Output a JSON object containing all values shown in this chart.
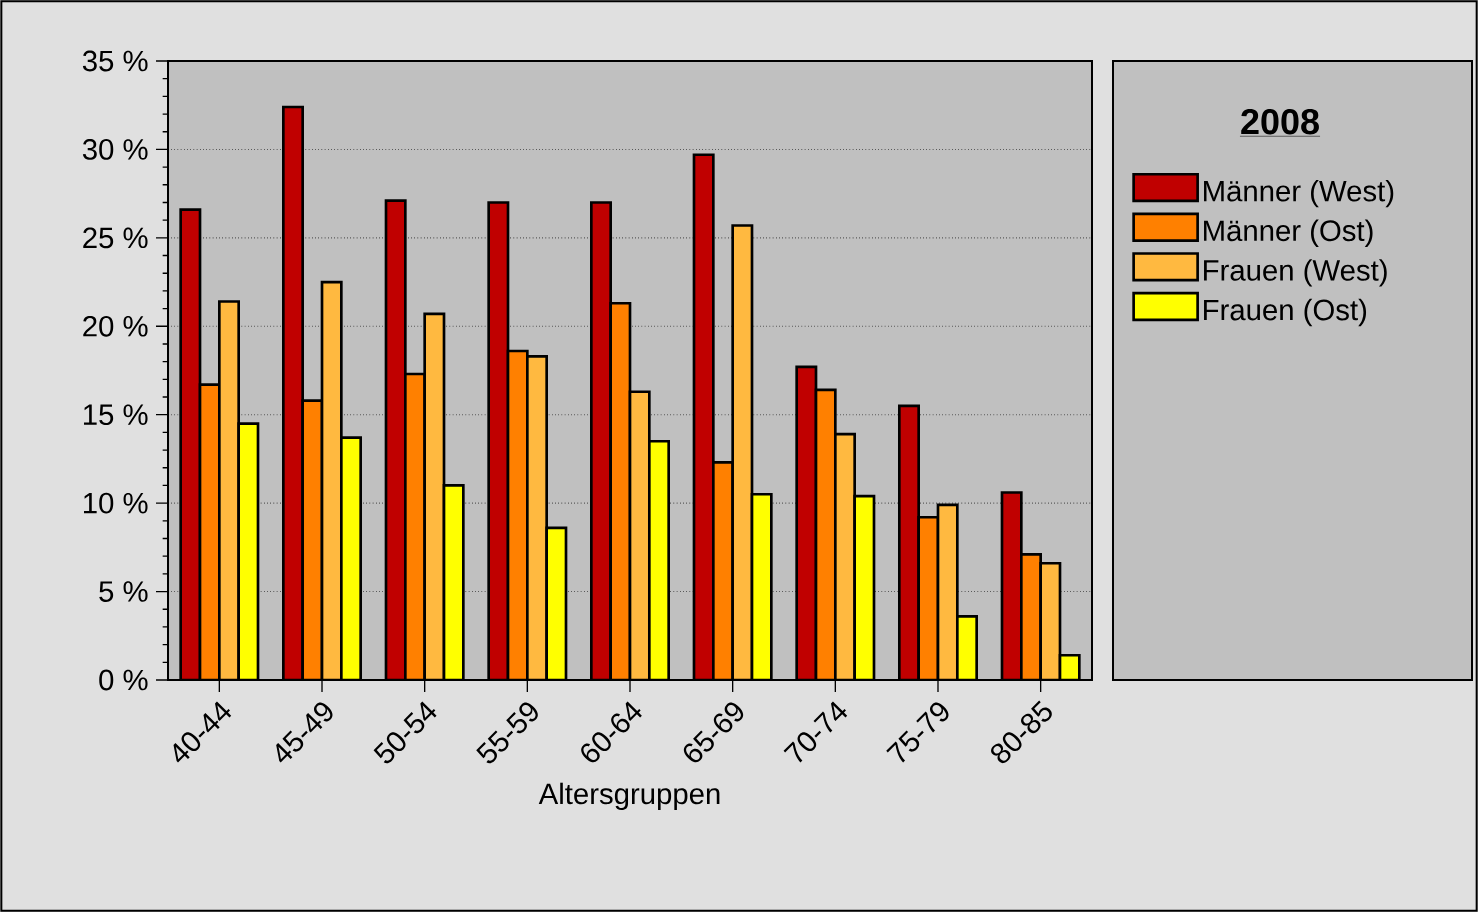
{
  "chart_data": {
    "type": "bar",
    "xlabel": "Altersgruppen",
    "legend_title": "2008",
    "categories": [
      "40-44",
      "45-49",
      "50-54",
      "55-59",
      "60-64",
      "65-69",
      "70-74",
      "75-79",
      "80-85"
    ],
    "series": [
      {
        "name": "Männer (West)",
        "color": "#c00000",
        "values": [
          26.6,
          32.4,
          27.1,
          27.0,
          27.0,
          29.7,
          17.7,
          15.5,
          10.6
        ]
      },
      {
        "name": "Männer (Ost)",
        "color": "#ff8000",
        "values": [
          16.7,
          15.8,
          17.3,
          18.6,
          21.3,
          12.3,
          16.4,
          9.2,
          7.1
        ]
      },
      {
        "name": "Frauen (West)",
        "color": "#ffb940",
        "values": [
          21.4,
          22.5,
          20.7,
          18.3,
          16.3,
          25.7,
          13.9,
          9.9,
          6.6
        ]
      },
      {
        "name": "Frauen (Ost)",
        "color": "#ffff00",
        "values": [
          14.5,
          13.7,
          11.0,
          8.6,
          13.5,
          10.5,
          10.4,
          3.6,
          1.4
        ]
      }
    ],
    "ylim": [
      0,
      35
    ],
    "yticks": [
      {
        "value": 0,
        "label": "0 %"
      },
      {
        "value": 5,
        "label": "5 %"
      },
      {
        "value": 10,
        "label": "10 %"
      },
      {
        "value": 15,
        "label": "15 %"
      },
      {
        "value": 20,
        "label": "20 %"
      },
      {
        "value": 25,
        "label": "25 %"
      },
      {
        "value": 30,
        "label": "30 %"
      },
      {
        "value": 35,
        "label": "35 %"
      }
    ],
    "grid": "y",
    "legend": "right"
  }
}
